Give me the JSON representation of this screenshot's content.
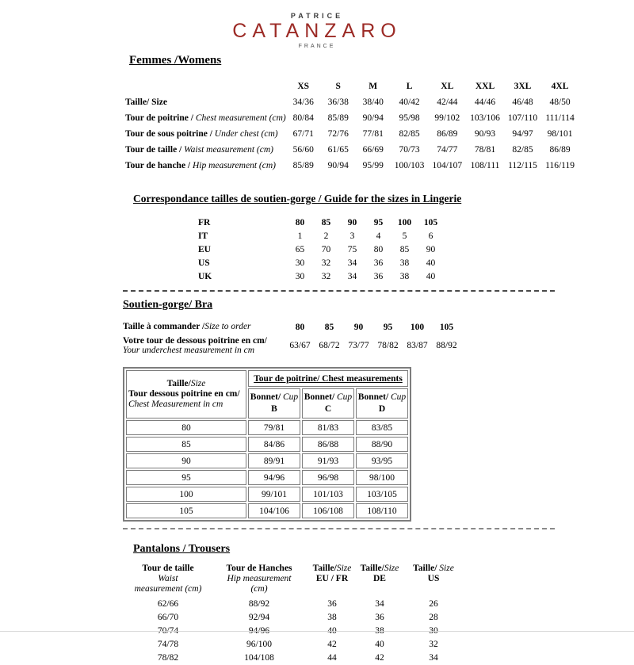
{
  "page": {
    "accent_red": "#9c2b26"
  },
  "logo": {
    "top": "PATRICE",
    "main": "CATANZARO",
    "sub": "FRANCE"
  },
  "womens": {
    "heading": "Femmes /Womens",
    "sizes": [
      "XS",
      "S",
      "M",
      "L",
      "XL",
      "XXL",
      "3XL",
      "4XL"
    ],
    "rows": [
      {
        "fr": "Taille/ Size",
        "en": "",
        "values": [
          "34/36",
          "36/38",
          "38/40",
          "40/42",
          "42/44",
          "44/46",
          "46/48",
          "48/50"
        ]
      },
      {
        "fr": "Tour de poitrine /",
        "en": "Chest measurement (cm)",
        "values": [
          "80/84",
          "85/89",
          "90/94",
          "95/98",
          "99/102",
          "103/106",
          "107/110",
          "111/114"
        ]
      },
      {
        "fr": "Tour de sous poitrine /",
        "en": "Under chest (cm)",
        "values": [
          "67/71",
          "72/76",
          "77/81",
          "82/85",
          "86/89",
          "90/93",
          "94/97",
          "98/101"
        ]
      },
      {
        "fr": "Tour de taille /",
        "en": "Waist measurement (cm)",
        "values": [
          "56/60",
          "61/65",
          "66/69",
          "70/73",
          "74/77",
          "78/81",
          "82/85",
          "86/89"
        ]
      },
      {
        "fr": "Tour de hanche /",
        "en": "Hip measurement (cm)",
        "values": [
          "85/89",
          "90/94",
          "95/99",
          "100/103",
          "104/107",
          "108/111",
          "112/115",
          "116/119"
        ]
      }
    ]
  },
  "lingerie": {
    "heading": "Correspondance tailles de soutien-gorge / Guide for the sizes in Lingerie",
    "rows": [
      {
        "label": "FR",
        "values": [
          "80",
          "85",
          "90",
          "95",
          "100",
          "105"
        ]
      },
      {
        "label": "IT",
        "values": [
          "1",
          "2",
          "3",
          "4",
          "5",
          "6"
        ]
      },
      {
        "label": "EU",
        "values": [
          "65",
          "70",
          "75",
          "80",
          "85",
          "90"
        ]
      },
      {
        "label": "US",
        "values": [
          "30",
          "32",
          "34",
          "36",
          "38",
          "40"
        ]
      },
      {
        "label": "UK",
        "values": [
          "30",
          "32",
          "34",
          "36",
          "38",
          "40"
        ]
      }
    ]
  },
  "bra": {
    "heading": "Soutien-gorge/ Bra",
    "order_fr": "Taille à commander /",
    "order_en": "Size to order",
    "order_values": [
      "80",
      "85",
      "90",
      "95",
      "100",
      "105"
    ],
    "underchest_fr": "Votre tour de dessous poitrine en cm/",
    "underchest_en": "Your underchest measurement in cm",
    "underchest_values": [
      "63/67",
      "68/72",
      "73/77",
      "78/82",
      "83/87",
      "88/92"
    ]
  },
  "bra_table": {
    "corner_title_fr": "Taille/",
    "corner_title_en": "Size",
    "corner_line2": "Tour dessous poitrine en cm/",
    "corner_line3": "Chest Measurement in cm",
    "span_header": "Tour de poitrine/ Chest measurements",
    "cup_fr": "Bonnet/",
    "cup_en": "Cup",
    "cups": [
      "B",
      "C",
      "D"
    ],
    "rows": [
      {
        "size": "80",
        "b": "79/81",
        "c": "81/83",
        "d": "83/85"
      },
      {
        "size": "85",
        "b": "84/86",
        "c": "86/88",
        "d": "88/90"
      },
      {
        "size": "90",
        "b": "89/91",
        "c": "91/93",
        "d": "93/95"
      },
      {
        "size": "95",
        "b": "94/96",
        "c": "96/98",
        "d": "98/100"
      },
      {
        "size": "100",
        "b": "99/101",
        "c": "101/103",
        "d": "103/105"
      },
      {
        "size": "105",
        "b": "104/106",
        "c": "106/108",
        "d": "108/110"
      }
    ]
  },
  "trousers": {
    "heading": "Pantalons / Trousers",
    "columns": [
      {
        "fr": "Tour de taille",
        "en1": "Waist",
        "en2": "measurement (cm)"
      },
      {
        "fr": "Tour de Hanches",
        "en1": "Hip measurement",
        "en2": "(cm)"
      },
      {
        "fr": "Taille/",
        "fr_it": "Size",
        "sub": "EU / FR"
      },
      {
        "fr": "Taille/",
        "fr_it": "Size",
        "sub": "DE"
      },
      {
        "fr": "Taille/",
        "fr_it": "Size",
        "sub": "US"
      }
    ],
    "rows": [
      [
        "62/66",
        "88/92",
        "36",
        "34",
        "26"
      ],
      [
        "66/70",
        "92/94",
        "38",
        "36",
        "28"
      ],
      [
        "70/74",
        "94/96",
        "40",
        "38",
        "30"
      ],
      [
        "74/78",
        "96/100",
        "42",
        "40",
        "32"
      ],
      [
        "78/82",
        "104/108",
        "44",
        "42",
        "34"
      ]
    ]
  }
}
